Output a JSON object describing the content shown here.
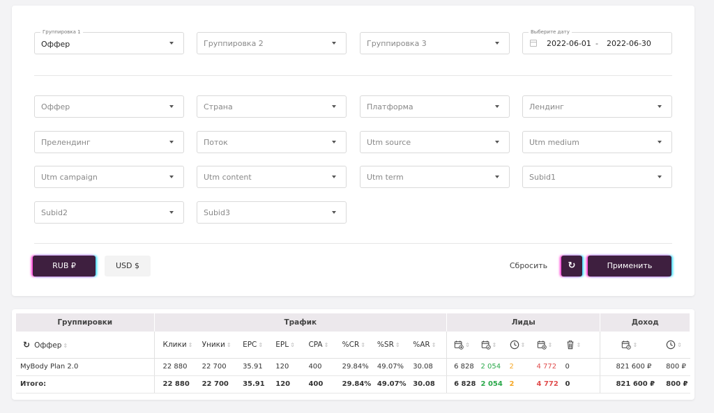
{
  "grouping": {
    "g1_label": "Группировка 1",
    "g1_value": "Оффер",
    "g2_placeholder": "Группировка 2",
    "g3_placeholder": "Группировка 3",
    "date_label": "Выберите дату",
    "date_from": "2022-06-01",
    "date_to": "2022-06-30"
  },
  "filters": [
    "Оффер",
    "Страна",
    "Платформа",
    "Лендинг",
    "Прелендинг",
    "Поток",
    "Utm source",
    "Utm medium",
    "Utm campaign",
    "Utm content",
    "Utm term",
    "Subid1",
    "Subid2",
    "Subid3"
  ],
  "currency": {
    "rub": "RUB ₽",
    "usd": "USD $"
  },
  "actions": {
    "reset": "Сбросить",
    "apply": "Применить"
  },
  "table": {
    "groups": {
      "grouping": "Группировки",
      "traffic": "Трафик",
      "leads": "Лиды",
      "income": "Доход"
    },
    "columns": {
      "offer": "Оффер",
      "clicks": "Клики",
      "uniques": "Уники",
      "epc": "EPC",
      "epl": "EPL",
      "cpa": "CPA",
      "cr": "%CR",
      "sr": "%SR",
      "ar": "%AR"
    },
    "row": {
      "name": "MyBody Plan 2.0",
      "clicks": "22 880",
      "uniques": "22 700",
      "epc": "35.91",
      "epl": "120",
      "cpa": "400",
      "cr": "29.84%",
      "sr": "49.07%",
      "ar": "30.08",
      "l_total": "6 828",
      "l_approved": "2 054",
      "l_hold": "2",
      "l_rejected": "4 772",
      "l_trash": "0",
      "inc_approved": "821 600 ₽",
      "inc_hold": "800 ₽"
    },
    "total": {
      "name": "Итого:",
      "clicks": "22 880",
      "uniques": "22 700",
      "epc": "35.91",
      "epl": "120",
      "cpa": "400",
      "cr": "29.84%",
      "sr": "49.07%",
      "ar": "30.08",
      "l_total": "6 828",
      "l_approved": "2 054",
      "l_hold": "2",
      "l_rejected": "4 772",
      "l_trash": "0",
      "inc_approved": "821 600 ₽",
      "inc_hold": "800 ₽"
    }
  },
  "icons": {
    "refresh": "refresh-icon",
    "calendar": "calendar-icon",
    "sort": "sort-icon"
  },
  "colors": {
    "primary": "#3e1f3f",
    "green": "#2aa84a",
    "orange": "#f5a623",
    "red": "#e04c4c"
  }
}
